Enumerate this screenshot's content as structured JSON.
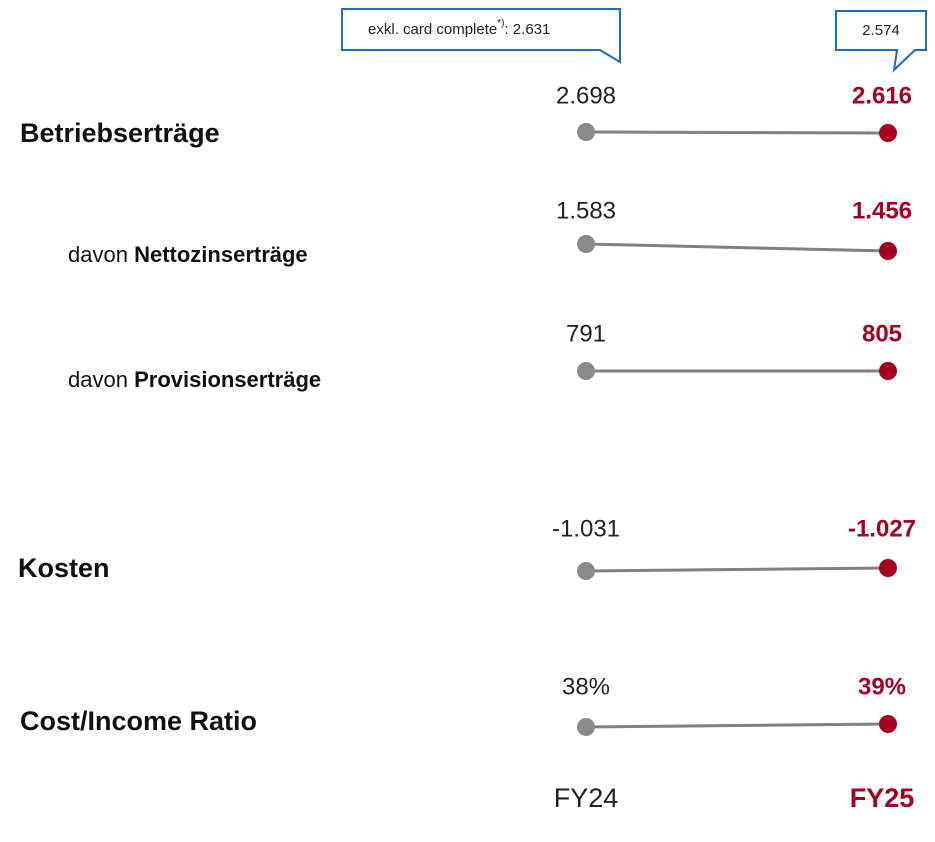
{
  "callouts": [
    {
      "text": "exkl. card complete",
      "superscript": "*)",
      "suffix": ": 2.631"
    },
    {
      "text": "2.574"
    }
  ],
  "rows": [
    {
      "label": "Betriebserträge",
      "fy24": "2.698",
      "fy25": "2.616"
    },
    {
      "prefix": "davon",
      "label": "Nettozinserträge",
      "fy24": "1.583",
      "fy25": "1.456"
    },
    {
      "prefix": "davon",
      "label": "Provisionserträge",
      "fy24": "791",
      "fy25": "805"
    },
    {
      "label": "Kosten",
      "fy24": "-1.031",
      "fy25": "-1.027"
    },
    {
      "label": "Cost/Income Ratio",
      "fy24": "38%",
      "fy25": "39%"
    }
  ],
  "footer": {
    "fy24": "FY24",
    "fy25": "FY25"
  }
}
